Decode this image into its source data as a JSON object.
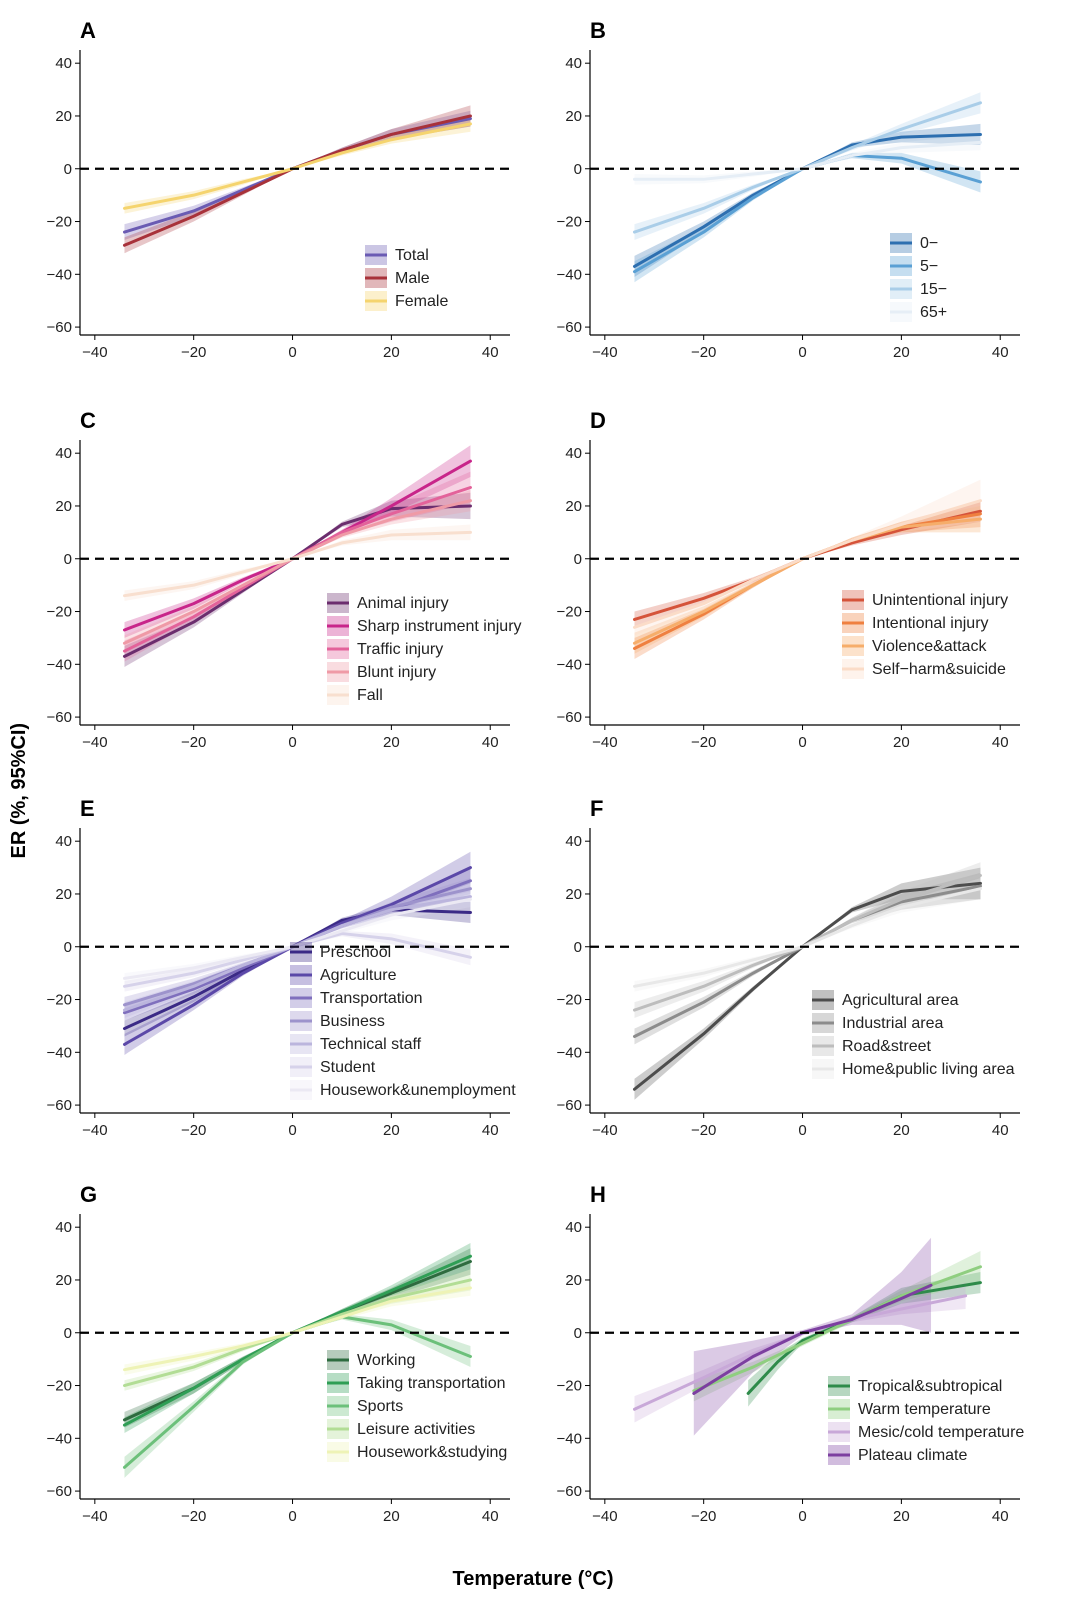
{
  "figure": {
    "ylabel": "ER (%, 95%CI)",
    "xlabel": "Temperature (°C)",
    "x_ticks": [
      "−40",
      "−20",
      "0",
      "20",
      "40"
    ],
    "y_ticks": [
      "40",
      "20",
      "0",
      "−20",
      "−40",
      "−60"
    ]
  },
  "chart_data": [
    {
      "type": "line",
      "panel": "A",
      "xlim": [
        -43,
        44
      ],
      "ylim": [
        -63,
        45
      ],
      "series": [
        {
          "name": "Total",
          "color": "#6a5bb3",
          "x": [
            -34,
            -20,
            -10,
            0,
            10,
            20,
            36
          ],
          "y": [
            -24,
            -16,
            -8,
            0,
            7,
            13,
            19
          ],
          "ci": [
            3,
            2,
            1,
            0,
            1,
            2,
            3
          ]
        },
        {
          "name": "Male",
          "color": "#a8323a",
          "x": [
            -34,
            -20,
            -10,
            0,
            10,
            20,
            36
          ],
          "y": [
            -29,
            -18,
            -9,
            0,
            7,
            13,
            20
          ],
          "ci": [
            3,
            2,
            1,
            0,
            1,
            2,
            4
          ]
        },
        {
          "name": "Female",
          "color": "#f5d46e",
          "x": [
            -34,
            -20,
            -10,
            0,
            10,
            20,
            36
          ],
          "y": [
            -15,
            -10,
            -5,
            0,
            6,
            11,
            17
          ],
          "ci": [
            2,
            1.5,
            1,
            0,
            1,
            1.5,
            3
          ]
        }
      ]
    },
    {
      "type": "line",
      "panel": "B",
      "xlim": [
        -43,
        44
      ],
      "ylim": [
        -63,
        45
      ],
      "series": [
        {
          "name": "0−",
          "color": "#2d6fb0",
          "x": [
            -34,
            -20,
            -10,
            0,
            10,
            20,
            36
          ],
          "y": [
            -37,
            -22,
            -10,
            0,
            9,
            12,
            13
          ],
          "ci": [
            4,
            2,
            1,
            0,
            1,
            2,
            4
          ]
        },
        {
          "name": "5−",
          "color": "#5aa0d4",
          "x": [
            -34,
            -20,
            -10,
            0,
            10,
            20,
            36
          ],
          "y": [
            -39,
            -24,
            -11,
            0,
            5,
            4,
            -5
          ],
          "ci": [
            4,
            2,
            1,
            0,
            1,
            2,
            4
          ]
        },
        {
          "name": "15−",
          "color": "#a9cde8",
          "x": [
            -34,
            -20,
            -10,
            0,
            10,
            20,
            36
          ],
          "y": [
            -24,
            -15,
            -7,
            0,
            8,
            15,
            25
          ],
          "ci": [
            3,
            2,
            1,
            0,
            1,
            2,
            4
          ]
        },
        {
          "name": "65+",
          "color": "#e6eef6",
          "x": [
            -34,
            -20,
            -10,
            0,
            10,
            20,
            36
          ],
          "y": [
            -4,
            -4,
            -2,
            0,
            5,
            8,
            10
          ],
          "ci": [
            2,
            1.5,
            1,
            0,
            1,
            2,
            3
          ]
        }
      ]
    },
    {
      "type": "line",
      "panel": "C",
      "xlim": [
        -43,
        44
      ],
      "ylim": [
        -63,
        45
      ],
      "series": [
        {
          "name": "Animal injury",
          "color": "#6b2d6e",
          "x": [
            -34,
            -20,
            -10,
            0,
            10,
            20,
            36
          ],
          "y": [
            -37,
            -24,
            -12,
            0,
            13,
            19,
            20
          ],
          "ci": [
            4,
            2,
            1,
            0,
            1,
            3,
            5
          ]
        },
        {
          "name": "Sharp instrument injury",
          "color": "#c8258a",
          "x": [
            -34,
            -20,
            -10,
            0,
            10,
            20,
            36
          ],
          "y": [
            -27,
            -17,
            -8,
            0,
            10,
            20,
            37
          ],
          "ci": [
            3,
            2,
            1,
            0,
            1,
            3,
            6
          ]
        },
        {
          "name": "Traffic injury",
          "color": "#e3629a",
          "x": [
            -34,
            -20,
            -10,
            0,
            10,
            20,
            36
          ],
          "y": [
            -35,
            -22,
            -11,
            0,
            10,
            17,
            27
          ],
          "ci": [
            4,
            2,
            1,
            0,
            1,
            3,
            6
          ]
        },
        {
          "name": "Blunt injury",
          "color": "#ef9aa6",
          "x": [
            -34,
            -20,
            -10,
            0,
            10,
            20,
            36
          ],
          "y": [
            -32,
            -20,
            -10,
            0,
            9,
            15,
            22
          ],
          "ci": [
            3,
            2,
            1,
            0,
            1,
            2,
            4
          ]
        },
        {
          "name": "Fall",
          "color": "#f8dfcf",
          "x": [
            -34,
            -20,
            -10,
            0,
            10,
            20,
            36
          ],
          "y": [
            -14,
            -10,
            -5,
            0,
            6,
            9,
            10
          ],
          "ci": [
            2,
            1.5,
            1,
            0,
            1,
            2,
            3
          ]
        }
      ]
    },
    {
      "type": "line",
      "panel": "D",
      "xlim": [
        -43,
        44
      ],
      "ylim": [
        -63,
        45
      ],
      "series": [
        {
          "name": "Unintentional injury",
          "color": "#d5533a",
          "x": [
            -34,
            -20,
            -10,
            0,
            10,
            20,
            36
          ],
          "y": [
            -23,
            -15,
            -8,
            0,
            6,
            11,
            18
          ],
          "ci": [
            3,
            2,
            1,
            0,
            1,
            2,
            4
          ]
        },
        {
          "name": "Intentional injury",
          "color": "#ef8040",
          "x": [
            -34,
            -20,
            -10,
            0,
            10,
            20,
            36
          ],
          "y": [
            -34,
            -21,
            -10,
            0,
            7,
            12,
            17
          ],
          "ci": [
            4,
            2,
            1,
            0,
            1,
            2,
            5
          ]
        },
        {
          "name": "Violence&attack",
          "color": "#f6ad6a",
          "x": [
            -34,
            -20,
            -10,
            0,
            10,
            20,
            36
          ],
          "y": [
            -32,
            -20,
            -10,
            0,
            7,
            12,
            15
          ],
          "ci": [
            4,
            2,
            1,
            0,
            1,
            2,
            5
          ]
        },
        {
          "name": "Self−harm&suicide",
          "color": "#fbdcc8",
          "x": [
            -34,
            -20,
            -10,
            0,
            10,
            20,
            36
          ],
          "y": [
            -26,
            -17,
            -8,
            0,
            7,
            13,
            22
          ],
          "ci": [
            3,
            2,
            1,
            0,
            1,
            3,
            8
          ]
        }
      ]
    },
    {
      "type": "line",
      "panel": "E",
      "xlim": [
        -43,
        44
      ],
      "ylim": [
        -63,
        45
      ],
      "series": [
        {
          "name": "Preschool",
          "color": "#3b2a86",
          "x": [
            -34,
            -20,
            -10,
            0,
            10,
            20,
            36
          ],
          "y": [
            -31,
            -19,
            -9,
            0,
            10,
            14,
            13
          ],
          "ci": [
            3,
            2,
            1,
            0,
            1,
            2,
            4
          ]
        },
        {
          "name": "Agriculture",
          "color": "#5b48a8",
          "x": [
            -34,
            -20,
            -10,
            0,
            10,
            20,
            36
          ],
          "y": [
            -37,
            -22,
            -10,
            0,
            9,
            16,
            30
          ],
          "ci": [
            4,
            2,
            1,
            0,
            1,
            3,
            6
          ]
        },
        {
          "name": "Transportation",
          "color": "#7f6fbd",
          "x": [
            -34,
            -20,
            -10,
            0,
            10,
            20,
            36
          ],
          "y": [
            -25,
            -16,
            -8,
            0,
            8,
            14,
            25
          ],
          "ci": [
            3,
            2,
            1,
            0,
            1,
            2,
            5
          ]
        },
        {
          "name": "Business",
          "color": "#9d93cc",
          "x": [
            -34,
            -20,
            -10,
            0,
            10,
            20,
            36
          ],
          "y": [
            -22,
            -14,
            -7,
            0,
            8,
            15,
            22
          ],
          "ci": [
            3,
            2,
            1,
            0,
            1,
            2,
            4
          ]
        },
        {
          "name": "Technical staff",
          "color": "#bbb5dd",
          "x": [
            -34,
            -20,
            -10,
            0,
            10,
            20,
            36
          ],
          "y": [
            -24,
            -15,
            -7,
            0,
            8,
            14,
            19
          ],
          "ci": [
            3,
            2,
            1,
            0,
            1,
            2,
            4
          ]
        },
        {
          "name": "Student",
          "color": "#d6d2ea",
          "x": [
            -34,
            -20,
            -10,
            0,
            10,
            20,
            36
          ],
          "y": [
            -15,
            -10,
            -5,
            0,
            5,
            3,
            -4
          ],
          "ci": [
            2,
            1.5,
            1,
            0,
            1,
            2,
            3
          ]
        },
        {
          "name": "Housework&unemployment",
          "color": "#ebe9f3",
          "x": [
            -34,
            -20,
            -10,
            0,
            10,
            20,
            36
          ],
          "y": [
            -12,
            -8,
            -4,
            0,
            6,
            12,
            18
          ],
          "ci": [
            2,
            1.5,
            1,
            0,
            1,
            2,
            3
          ]
        }
      ]
    },
    {
      "type": "line",
      "panel": "F",
      "xlim": [
        -43,
        44
      ],
      "ylim": [
        -63,
        45
      ],
      "series": [
        {
          "name": "Agricultural area",
          "color": "#4d4d4d",
          "x": [
            -34,
            -20,
            -10,
            0,
            10,
            20,
            36
          ],
          "y": [
            -54,
            -33,
            -16,
            0,
            14,
            21,
            24
          ],
          "ci": [
            4,
            2,
            1,
            0,
            1,
            3,
            6
          ]
        },
        {
          "name": "Industrial area",
          "color": "#8c8c8c",
          "x": [
            -34,
            -20,
            -10,
            0,
            10,
            20,
            36
          ],
          "y": [
            -34,
            -21,
            -10,
            0,
            10,
            17,
            23
          ],
          "ci": [
            3,
            2,
            1,
            0,
            1,
            3,
            5
          ]
        },
        {
          "name": "Road&street",
          "color": "#bdbdbd",
          "x": [
            -34,
            -20,
            -10,
            0,
            10,
            20,
            36
          ],
          "y": [
            -24,
            -15,
            -7,
            0,
            10,
            18,
            27
          ],
          "ci": [
            3,
            2,
            1,
            0,
            1,
            3,
            5
          ]
        },
        {
          "name": "Home&public living area",
          "color": "#e8e8e8",
          "x": [
            -34,
            -20,
            -10,
            0,
            10,
            20,
            36
          ],
          "y": [
            -15,
            -10,
            -5,
            0,
            8,
            15,
            22
          ],
          "ci": [
            2,
            1.5,
            1,
            0,
            1,
            2,
            4
          ]
        }
      ]
    },
    {
      "type": "line",
      "panel": "G",
      "xlim": [
        -43,
        44
      ],
      "ylim": [
        -63,
        45
      ],
      "series": [
        {
          "name": "Working",
          "color": "#2e6b3f",
          "x": [
            -34,
            -20,
            -10,
            0,
            10,
            20,
            36
          ],
          "y": [
            -33,
            -21,
            -10,
            0,
            8,
            15,
            27
          ],
          "ci": [
            3,
            2,
            1,
            0,
            1,
            2,
            5
          ]
        },
        {
          "name": "Taking transportation",
          "color": "#2f9e55",
          "x": [
            -34,
            -20,
            -10,
            0,
            10,
            20,
            36
          ],
          "y": [
            -35,
            -21,
            -10,
            0,
            8,
            16,
            29
          ],
          "ci": [
            3,
            2,
            1,
            0,
            1,
            2,
            5
          ]
        },
        {
          "name": "Sports",
          "color": "#6cc07a",
          "x": [
            -34,
            -20,
            -10,
            0,
            10,
            20,
            36
          ],
          "y": [
            -51,
            -28,
            -11,
            0,
            6,
            3,
            -9
          ],
          "ci": [
            4,
            2,
            1,
            0,
            1,
            2,
            4
          ]
        },
        {
          "name": "Leisure activities",
          "color": "#b2dd95",
          "x": [
            -34,
            -20,
            -10,
            0,
            10,
            20,
            36
          ],
          "y": [
            -20,
            -13,
            -6,
            0,
            7,
            13,
            20
          ],
          "ci": [
            2,
            1.5,
            1,
            0,
            1,
            2,
            4
          ]
        },
        {
          "name": "Housework&studying",
          "color": "#eef3b6",
          "x": [
            -34,
            -20,
            -10,
            0,
            10,
            20,
            36
          ],
          "y": [
            -14,
            -9,
            -5,
            0,
            6,
            12,
            17
          ],
          "ci": [
            2,
            1.5,
            1,
            0,
            1,
            2,
            3
          ]
        }
      ]
    },
    {
      "type": "line",
      "panel": "H",
      "xlim": [
        -43,
        44
      ],
      "ylim": [
        -63,
        45
      ],
      "series": [
        {
          "name": "Tropical&subtropical",
          "color": "#2e8b4a",
          "x": [
            -11,
            -5,
            0,
            10,
            20,
            36
          ],
          "y": [
            -23,
            -11,
            -3,
            5,
            14,
            19
          ],
          "ci": [
            5,
            3,
            1,
            1,
            3,
            4
          ]
        },
        {
          "name": "Warm temperature",
          "color": "#8fce80",
          "x": [
            -22,
            -10,
            0,
            10,
            20,
            36
          ],
          "y": [
            -22,
            -13,
            -4,
            5,
            14,
            25
          ],
          "ci": [
            4,
            2,
            1,
            1,
            2,
            6
          ]
        },
        {
          "name": "Mesic/cold temperature",
          "color": "#c8a8d8",
          "x": [
            -34,
            -20,
            -10,
            0,
            10,
            20,
            33
          ],
          "y": [
            -29,
            -17,
            -8,
            0,
            5,
            9,
            14
          ],
          "ci": [
            5,
            3,
            2,
            0,
            1,
            2,
            5
          ]
        },
        {
          "name": "Plateau climate",
          "color": "#7c3fa0",
          "x": [
            -22,
            -10,
            0,
            10,
            20,
            26
          ],
          "y": [
            -23,
            -9,
            0,
            5,
            13,
            18
          ],
          "ci": [
            16,
            6,
            1,
            2,
            10,
            18
          ]
        }
      ]
    }
  ]
}
